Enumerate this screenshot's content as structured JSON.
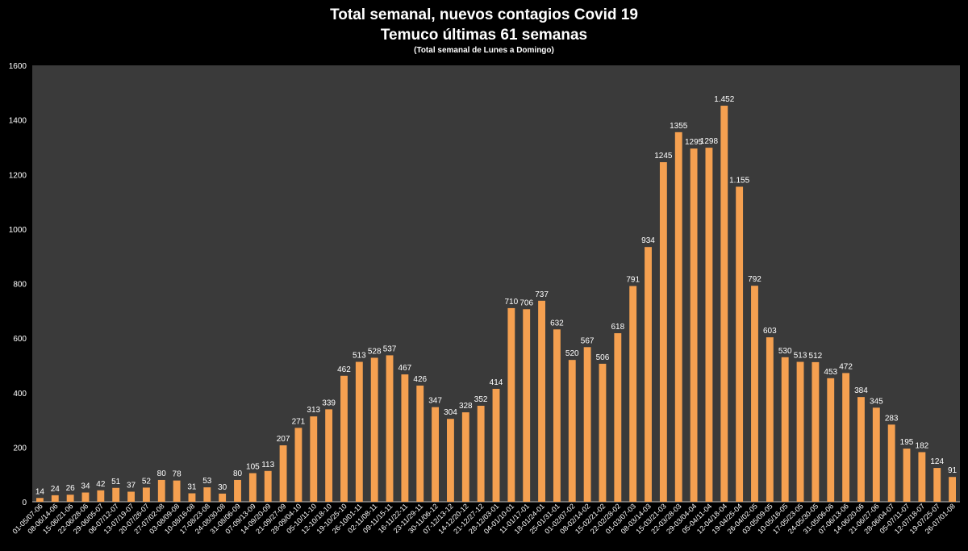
{
  "chart_data": {
    "type": "bar",
    "title": "Total semanal, nuevos contagios Covid 19",
    "subtitle": "Temuco últimas 61 semanas",
    "note": "(Total semanal de Lunes a Domingo)",
    "ylim": [
      0,
      1600
    ],
    "yticks": [
      0,
      200,
      400,
      600,
      800,
      1000,
      1200,
      1400,
      1600
    ],
    "grid": false,
    "bar_color": "#F5A050",
    "plot_bg": "#3A3A3A",
    "categories": [
      "01-05/07-06",
      "08-06/14-06",
      "15-06/21-06",
      "22-06/28-06",
      "29-06/05-07",
      "06-07/12-07",
      "13-07/19-07",
      "20-07/26-07",
      "27-07/02-08",
      "03-08/09-08",
      "10-08/16-08",
      "17-08/23-08",
      "24-08/30-08",
      "31-08/06-09",
      "07-09/13-09",
      "14-09/20-09",
      "21-09/27-09",
      "28-09/04-10",
      "05-10/11-10",
      "12-10/18-10",
      "19-10/25-10",
      "26-10/01-11",
      "02-11/08-11",
      "09-11/15-11",
      "16-11/22-11",
      "23-11/29-11",
      "30-11/06-12",
      "07-12/13-12",
      "14-12/20-12",
      "21-12/27-12",
      "28-12/03-01",
      "04-01/10-01",
      "11-01/17-01",
      "18-01/24-01",
      "25-01/31-01",
      "01-02/07-02",
      "08-02/14-02",
      "15-02/21-02",
      "22-02/28-02",
      "01-03/07-03",
      "08-03/14-03",
      "15-03/21-03",
      "22-03/28-03",
      "29-03/04-04",
      "05-04/11-04",
      "12-04/18-04",
      "19-04/25-04",
      "26-04/02-05",
      "03-05/09-05",
      "10-05/16-05",
      "17-05/23-05",
      "24-05/30-05",
      "31-05/06-06",
      "07-06/13-06",
      "14-06/20-06",
      "21-06/27-06",
      "28-06/04-07",
      "05-07/11-07",
      "12-07/18-07",
      "19-07/25-07",
      "26-07/01-08"
    ],
    "values": [
      14,
      24,
      26,
      34,
      42,
      51,
      37,
      52,
      80,
      78,
      31,
      53,
      30,
      80,
      105,
      113,
      207,
      271,
      313,
      339,
      462,
      513,
      528,
      537,
      467,
      426,
      347,
      304,
      328,
      352,
      414,
      710,
      706,
      737,
      632,
      520,
      567,
      506,
      618,
      791,
      934,
      1245,
      1355,
      1295,
      1298,
      1452,
      1155,
      792,
      603,
      530,
      513,
      512,
      453,
      472,
      384,
      345,
      283,
      195,
      182,
      124,
      91
    ],
    "data_labels": [
      "14",
      "24",
      "26",
      "34",
      "42",
      "51",
      "37",
      "52",
      "80",
      "78",
      "31",
      "53",
      "30",
      "80",
      "105",
      "113",
      "207",
      "271",
      "313",
      "339",
      "462",
      "513",
      "528",
      "537",
      "467",
      "426",
      "347",
      "304",
      "328",
      "352",
      "414",
      "710",
      "706",
      "737",
      "632",
      "520",
      "567",
      "506",
      "618",
      "791",
      "934",
      "1245",
      "1355",
      "1295",
      "1298",
      "1.452",
      "1.155",
      "792",
      "603",
      "530",
      "513",
      "512",
      "453",
      "472",
      "384",
      "345",
      "283",
      "195",
      "182",
      "124",
      "91"
    ]
  }
}
